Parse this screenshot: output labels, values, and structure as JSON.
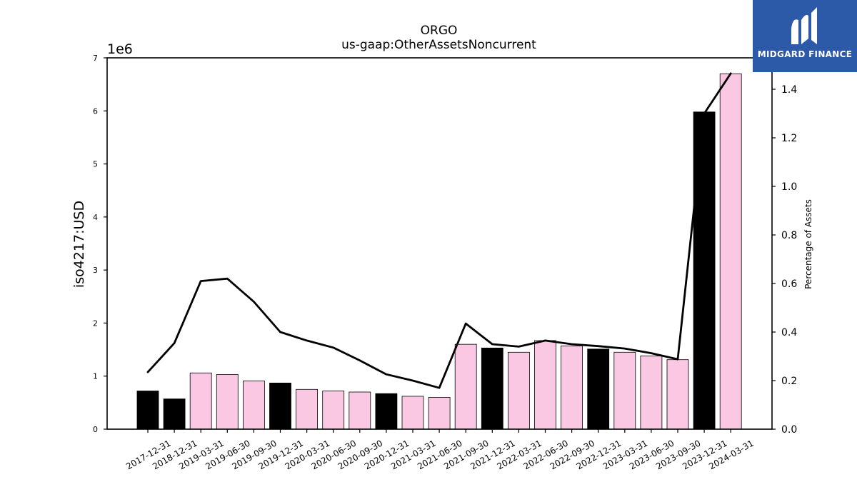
{
  "chart_data": {
    "type": "bar",
    "title": "ORGO",
    "subtitle": "us-gaap:OtherAssetsNoncurrent",
    "ylabel": "iso4217:USD",
    "y2label": "Percentage of Assets",
    "y_offset_label": "1e6",
    "ylim": [
      0,
      7000000
    ],
    "y2lim": [
      0,
      1.5294
    ],
    "yticks": [
      "0",
      "1",
      "2",
      "3",
      "4",
      "5",
      "6",
      "7"
    ],
    "y2ticks": [
      "0.0",
      "0.2",
      "0.4",
      "0.6",
      "0.8",
      "1.0",
      "1.2",
      "1.4"
    ],
    "categories": [
      "2017-12-31",
      "2018-12-31",
      "2019-03-31",
      "2019-06-30",
      "2019-09-30",
      "2019-12-31",
      "2020-03-31",
      "2020-06-30",
      "2020-09-30",
      "2020-12-31",
      "2021-03-31",
      "2021-06-30",
      "2021-09-30",
      "2021-12-31",
      "2022-03-31",
      "2022-06-30",
      "2022-09-30",
      "2022-12-31",
      "2023-03-31",
      "2023-06-30",
      "2023-09-30",
      "2023-12-31",
      "2024-03-31"
    ],
    "series": [
      {
        "type": "bar",
        "values": [
          720000,
          570000,
          1060000,
          1030000,
          910000,
          870000,
          750000,
          720000,
          700000,
          670000,
          620000,
          600000,
          1600000,
          1530000,
          1450000,
          1670000,
          1570000,
          1510000,
          1450000,
          1380000,
          1310000,
          5980000,
          6700000
        ],
        "annual_flags": [
          true,
          true,
          false,
          false,
          false,
          true,
          false,
          false,
          false,
          true,
          false,
          false,
          false,
          true,
          false,
          false,
          false,
          true,
          false,
          false,
          false,
          true,
          false
        ]
      },
      {
        "type": "line",
        "axis": "right",
        "values": [
          0.235,
          0.354,
          0.61,
          0.62,
          0.525,
          0.4,
          0.365,
          0.336,
          0.283,
          0.226,
          0.2,
          0.17,
          0.435,
          0.35,
          0.34,
          0.365,
          0.35,
          0.342,
          0.332,
          0.313,
          0.288,
          1.3,
          1.465
        ]
      }
    ],
    "colors": {
      "annual": "#000000",
      "quarterly": "#fbc8e4",
      "line": "#000000"
    }
  },
  "logo": {
    "text": "MIDGARD FINANCE",
    "background": "#2c5aa8"
  }
}
